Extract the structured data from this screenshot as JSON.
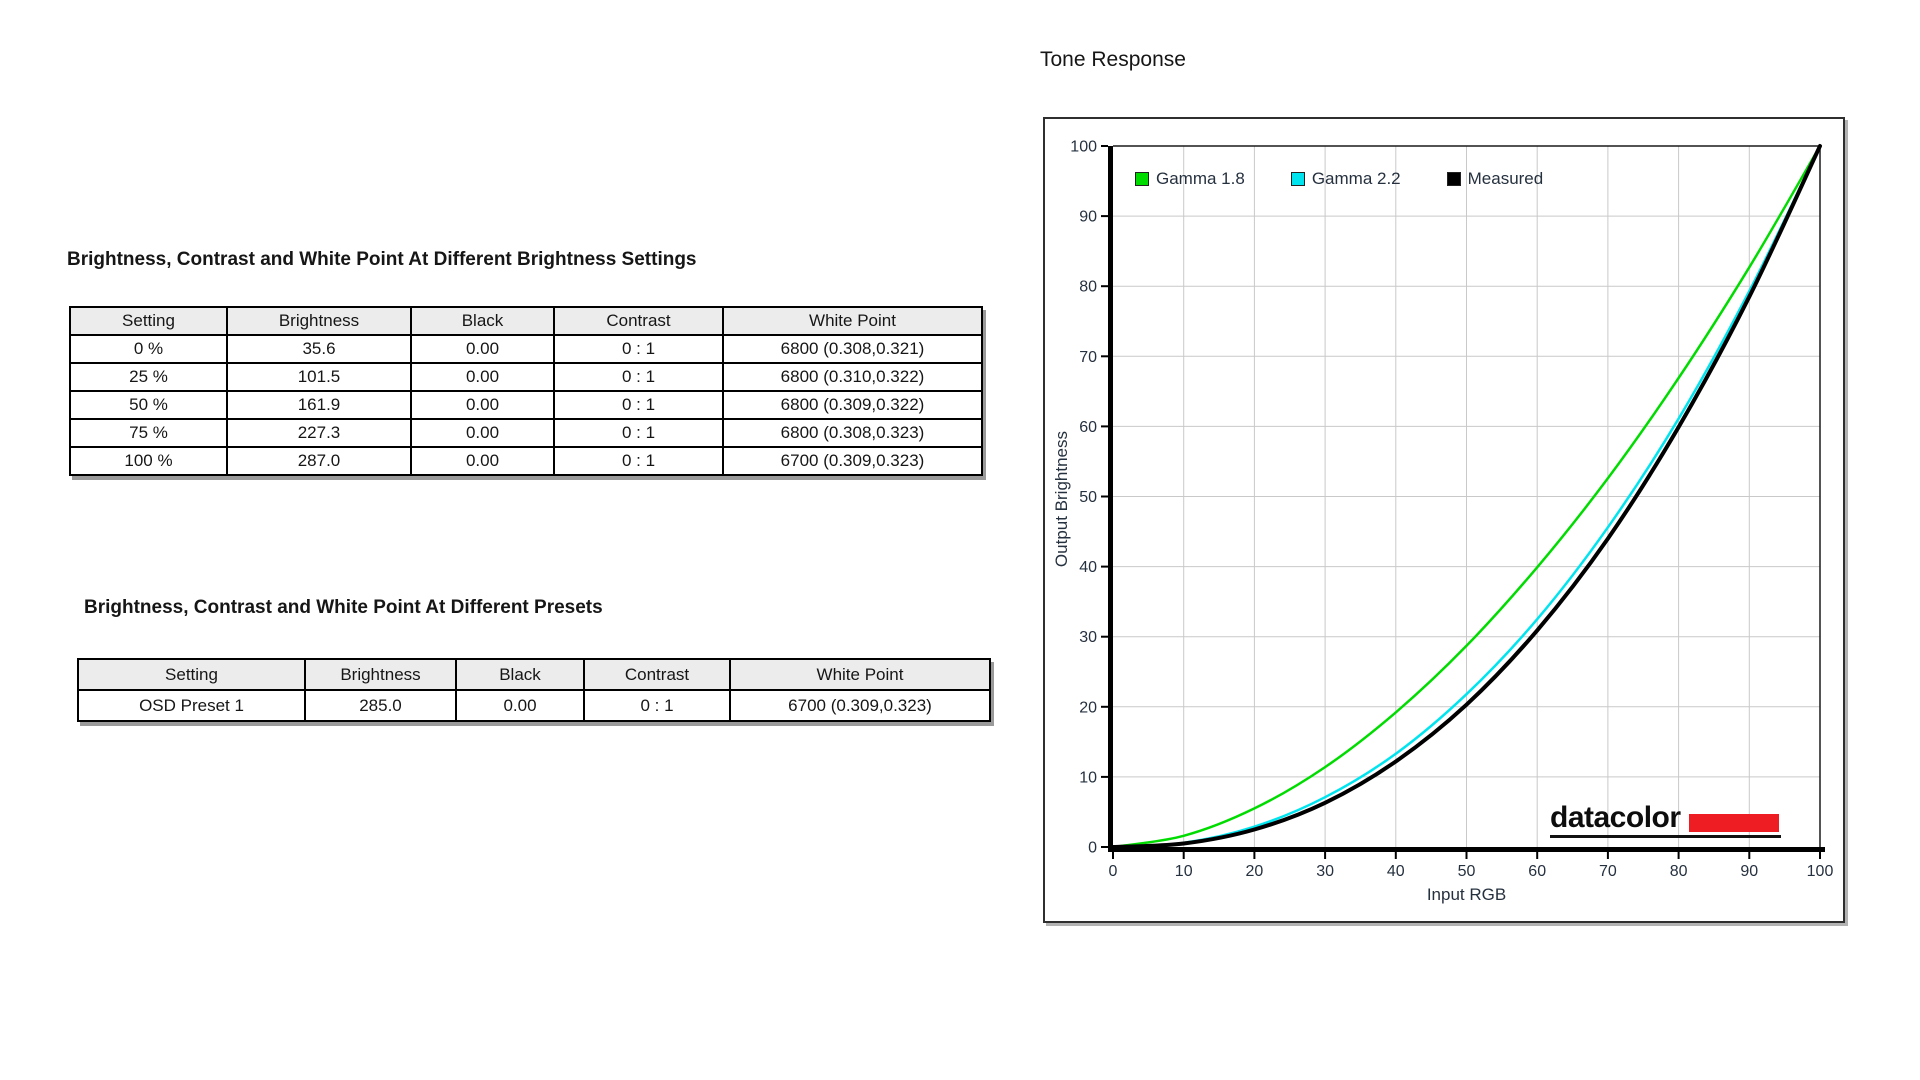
{
  "page": {
    "background": "#ffffff"
  },
  "tables": [
    {
      "title": "Brightness, Contrast and White Point At Different Brightness Settings",
      "columns": [
        "Setting",
        "Brightness",
        "Black",
        "Contrast",
        "White Point"
      ],
      "rows": [
        [
          "0 %",
          "35.6",
          "0.00",
          "0 : 1",
          "6800 (0.308,0.321)"
        ],
        [
          "25 %",
          "101.5",
          "0.00",
          "0 : 1",
          "6800 (0.310,0.322)"
        ],
        [
          "50 %",
          "161.9",
          "0.00",
          "0 : 1",
          "6800 (0.309,0.322)"
        ],
        [
          "75 %",
          "227.3",
          "0.00",
          "0 : 1",
          "6800 (0.308,0.323)"
        ],
        [
          "100 %",
          "287.0",
          "0.00",
          "0 : 1",
          "6700 (0.309,0.323)"
        ]
      ]
    },
    {
      "title": "Brightness, Contrast and White Point At Different Presets",
      "columns": [
        "Setting",
        "Brightness",
        "Black",
        "Contrast",
        "White Point"
      ],
      "rows": [
        [
          "OSD Preset 1",
          "285.0",
          "0.00",
          "0 : 1",
          "6700 (0.309,0.323)"
        ]
      ]
    }
  ],
  "chart_data": {
    "type": "line",
    "title": "Tone Response",
    "xlabel": "Input RGB",
    "ylabel": "Output Brightness",
    "xlim": [
      0,
      100
    ],
    "ylim": [
      0,
      100
    ],
    "x_ticks": [
      0,
      10,
      20,
      30,
      40,
      50,
      60,
      70,
      80,
      90,
      100
    ],
    "y_ticks": [
      0,
      10,
      20,
      30,
      40,
      50,
      60,
      70,
      80,
      90,
      100
    ],
    "grid": true,
    "legend_position": "inside-top-left",
    "x": [
      0,
      10,
      20,
      30,
      40,
      50,
      60,
      70,
      80,
      90,
      100
    ],
    "series": [
      {
        "name": "Gamma 1.8",
        "color": "#00dc00",
        "line_width": 2.5,
        "values": [
          0,
          1.6,
          5.5,
          11.4,
          19.2,
          28.7,
          39.9,
          52.6,
          66.9,
          82.7,
          100
        ]
      },
      {
        "name": "Gamma 2.2",
        "color": "#00e4ef",
        "line_width": 2.5,
        "values": [
          0,
          0.6,
          2.9,
          7.1,
          13.3,
          21.8,
          32.5,
          45.6,
          61.1,
          79.3,
          100
        ]
      },
      {
        "name": "Measured",
        "color": "#000000",
        "line_width": 4,
        "values": [
          0,
          0.5,
          2.5,
          6.3,
          12.2,
          20.3,
          30.9,
          44.0,
          59.9,
          78.5,
          100
        ]
      }
    ],
    "colors": {
      "grid": "#c9c9c9",
      "axis": "#000000",
      "text": "#26313f",
      "border": "#1a1a1a"
    },
    "branding": {
      "text": "datacolor",
      "accent_color": "#ee1c23"
    }
  }
}
